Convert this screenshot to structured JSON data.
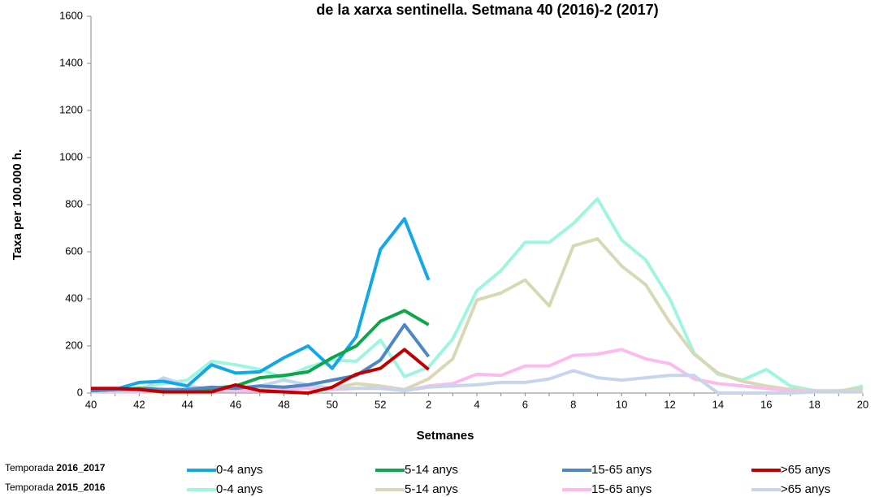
{
  "chart_data": {
    "type": "line",
    "title": "de la xarxa sentinella. Setmana 40 (2016)-2 (2017)",
    "y_label": "Taxa per 100.000 h.",
    "x_label": "Setmanes",
    "categories": [
      "40",
      null,
      "42",
      null,
      "44",
      null,
      "46",
      null,
      "48",
      null,
      "50",
      null,
      "52",
      null,
      "2",
      null,
      "4",
      null,
      "6",
      null,
      "8",
      null,
      "10",
      null,
      "12",
      null,
      "14",
      null,
      "16",
      null,
      "18",
      null,
      "20"
    ],
    "ylim": [
      0,
      1600
    ],
    "yticks": [
      0,
      200,
      400,
      600,
      800,
      1000,
      1200,
      1400,
      1600
    ],
    "seasons": [
      {
        "label": "Temporada",
        "name": "2016_2017",
        "series": [
          {
            "name": "0-4 anys",
            "color": "#14a7e8",
            "values": [
              10,
              15,
              45,
              50,
              30,
              120,
              85,
              90,
              150,
              200,
              105,
              240,
              610,
              740,
              480,
              null,
              null,
              null,
              null,
              null,
              null,
              null,
              null,
              null,
              null,
              null,
              null,
              null,
              null,
              null,
              null,
              null,
              null
            ]
          },
          {
            "name": "5-14 anys",
            "color": "#0ea54b",
            "values": [
              10,
              15,
              20,
              15,
              10,
              20,
              30,
              65,
              75,
              90,
              150,
              200,
              305,
              350,
              290,
              null,
              null,
              null,
              null,
              null,
              null,
              null,
              null,
              null,
              null,
              null,
              null,
              null,
              null,
              null,
              null,
              null,
              null
            ]
          },
          {
            "name": "15-65 anys",
            "color": "#4f86c6",
            "values": [
              10,
              15,
              15,
              15,
              15,
              25,
              20,
              30,
              25,
              35,
              55,
              75,
              140,
              290,
              155,
              null,
              null,
              null,
              null,
              null,
              null,
              null,
              null,
              null,
              null,
              null,
              null,
              null,
              null,
              null,
              null,
              null,
              null
            ]
          },
          {
            "name": ">65 anys",
            "color": "#c00000",
            "values": [
              20,
              20,
              15,
              5,
              5,
              5,
              35,
              10,
              5,
              0,
              25,
              80,
              105,
              185,
              100,
              null,
              null,
              null,
              null,
              null,
              null,
              null,
              null,
              null,
              null,
              null,
              null,
              null,
              null,
              null,
              null,
              null,
              null
            ]
          }
        ]
      },
      {
        "label": "Temporada",
        "name": "2015_2016",
        "series": [
          {
            "name": "0-4 anys",
            "color": "#9ff5e0",
            "values": [
              5,
              10,
              20,
              40,
              55,
              135,
              120,
              100,
              65,
              110,
              140,
              135,
              225,
              70,
              110,
              230,
              435,
              520,
              640,
              640,
              720,
              825,
              650,
              565,
              400,
              170,
              80,
              55,
              100,
              30,
              10,
              5,
              30
            ]
          },
          {
            "name": "5-14 anys",
            "color": "#d8d9b4",
            "values": [
              5,
              5,
              5,
              5,
              10,
              10,
              10,
              15,
              20,
              25,
              20,
              40,
              30,
              15,
              60,
              145,
              395,
              425,
              480,
              370,
              625,
              655,
              540,
              460,
              300,
              165,
              85,
              50,
              30,
              15,
              10,
              10,
              20
            ]
          },
          {
            "name": "15-65 anys",
            "color": "#fbbcec",
            "values": [
              5,
              5,
              5,
              10,
              10,
              10,
              10,
              10,
              15,
              20,
              15,
              20,
              25,
              10,
              30,
              40,
              80,
              75,
              115,
              115,
              160,
              165,
              185,
              145,
              125,
              60,
              40,
              30,
              20,
              10,
              5,
              5,
              5
            ]
          },
          {
            "name": ">65 anys",
            "color": "#c6d6ea",
            "values": [
              10,
              10,
              10,
              65,
              30,
              15,
              20,
              30,
              55,
              35,
              20,
              20,
              20,
              10,
              25,
              30,
              35,
              45,
              45,
              60,
              95,
              65,
              55,
              65,
              75,
              75,
              0,
              0,
              0,
              0,
              5,
              5,
              5
            ]
          }
        ]
      }
    ]
  }
}
